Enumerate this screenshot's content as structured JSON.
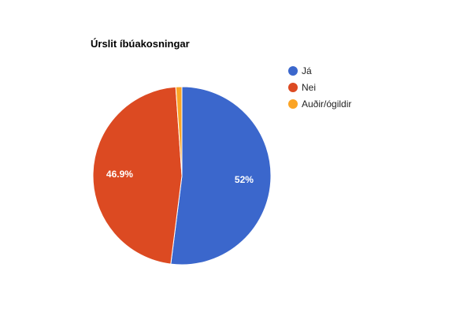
{
  "chart_data": {
    "type": "pie",
    "title": "Úrslit íbúakosningar",
    "slices": [
      {
        "label": "Já",
        "value": 52.0,
        "display": "52%",
        "color": "#3b67cc"
      },
      {
        "label": "Nei",
        "value": 46.9,
        "display": "46.9%",
        "color": "#dc4a22"
      },
      {
        "label": "Auðir/ógildir",
        "value": 1.1,
        "display": "",
        "color": "#fba425"
      }
    ],
    "legend_position": "right"
  }
}
